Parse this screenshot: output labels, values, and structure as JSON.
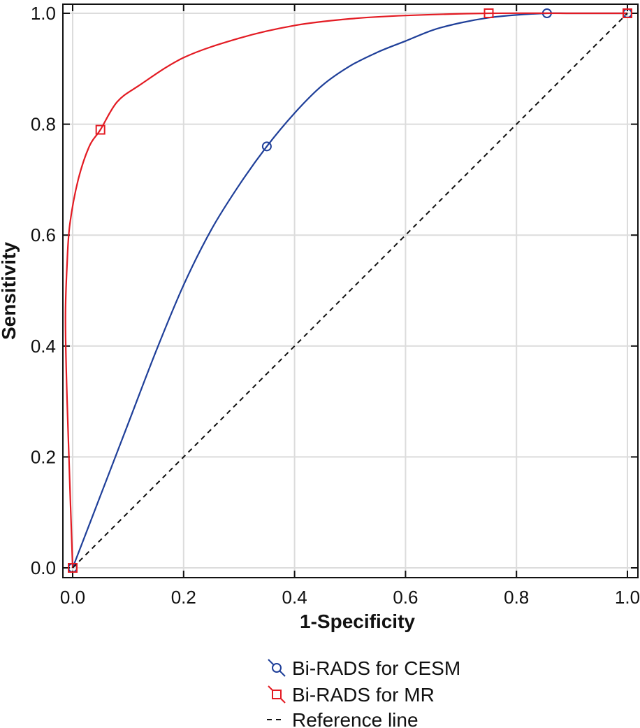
{
  "chart_data": {
    "type": "line",
    "title": "",
    "xlabel": "1-Specificity",
    "ylabel": "Sensitivity",
    "xlim": [
      0,
      1
    ],
    "ylim": [
      0,
      1
    ],
    "xticks": [
      "0.0",
      "0.2",
      "0.4",
      "0.6",
      "0.8",
      "1.0"
    ],
    "yticks": [
      "0.0",
      "0.2",
      "0.4",
      "0.6",
      "0.8",
      "1.0"
    ],
    "grid": true,
    "legend_position": "bottom",
    "series": [
      {
        "name": "Bi-RADS for CESM",
        "color": "#1f3f99",
        "marker": "circle",
        "points": [
          {
            "x": 0,
            "y": 0
          },
          {
            "x": 0.35,
            "y": 0.76
          },
          {
            "x": 0.855,
            "y": 1.0
          },
          {
            "x": 1.0,
            "y": 1.0
          }
        ],
        "curve": [
          [
            0,
            0
          ],
          [
            0.05,
            0.13
          ],
          [
            0.1,
            0.26
          ],
          [
            0.15,
            0.39
          ],
          [
            0.2,
            0.51
          ],
          [
            0.25,
            0.61
          ],
          [
            0.3,
            0.69
          ],
          [
            0.35,
            0.76
          ],
          [
            0.4,
            0.82
          ],
          [
            0.45,
            0.87
          ],
          [
            0.5,
            0.905
          ],
          [
            0.55,
            0.93
          ],
          [
            0.6,
            0.95
          ],
          [
            0.65,
            0.97
          ],
          [
            0.7,
            0.983
          ],
          [
            0.75,
            0.992
          ],
          [
            0.8,
            0.997
          ],
          [
            0.855,
            1.0
          ],
          [
            0.9,
            1.0
          ],
          [
            1.0,
            1.0
          ]
        ]
      },
      {
        "name": "Bi-RADS for MR",
        "color": "#e31b23",
        "marker": "square",
        "points": [
          {
            "x": 0,
            "y": 0
          },
          {
            "x": 0.05,
            "y": 0.79
          },
          {
            "x": 0.75,
            "y": 1.0
          },
          {
            "x": 1.0,
            "y": 1.0
          }
        ],
        "curve": [
          [
            0,
            0
          ],
          [
            -0.01,
            0.3
          ],
          [
            -0.013,
            0.45
          ],
          [
            -0.01,
            0.55
          ],
          [
            -0.005,
            0.62
          ],
          [
            0.01,
            0.7
          ],
          [
            0.03,
            0.76
          ],
          [
            0.05,
            0.79
          ],
          [
            0.08,
            0.84
          ],
          [
            0.12,
            0.87
          ],
          [
            0.2,
            0.92
          ],
          [
            0.3,
            0.955
          ],
          [
            0.4,
            0.978
          ],
          [
            0.5,
            0.99
          ],
          [
            0.6,
            0.996
          ],
          [
            0.75,
            1.0
          ],
          [
            0.9,
            1.0
          ],
          [
            1.0,
            1.0
          ]
        ]
      },
      {
        "name": "Reference line",
        "color": "#111111",
        "line_style": "dashed",
        "points": [
          {
            "x": 0,
            "y": 0
          },
          {
            "x": 1.0,
            "y": 1.0
          }
        ]
      }
    ]
  }
}
